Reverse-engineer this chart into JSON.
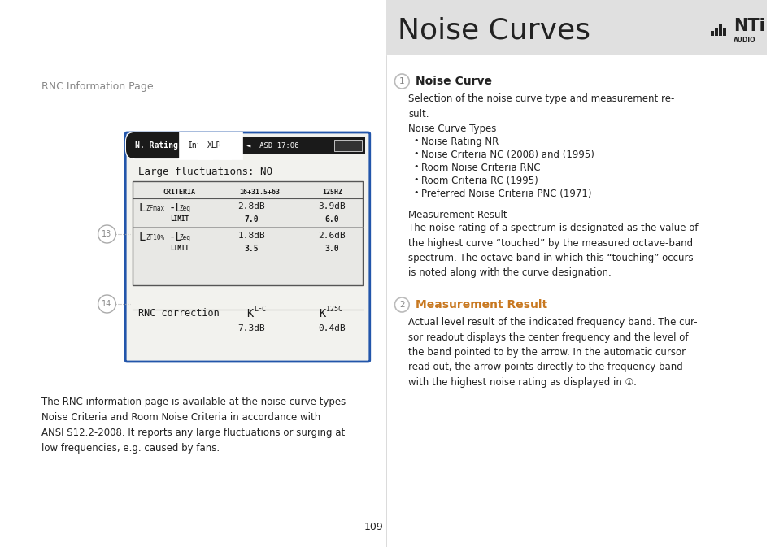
{
  "title": "Noise Curves",
  "header_bg": "#e0e0e0",
  "page_bg": "#ffffff",
  "page_number": "109",
  "left_section_title": "RNC Information Page",
  "screen_border_color": "#2255aa",
  "large_fluctuations_text": "Large fluctuations: NO",
  "table_header_row": [
    "CRITERIA",
    "16+31.5+63",
    "125 HZ"
  ],
  "table_row1_col2": "2.8dB",
  "table_row1_col3": "3.9dB",
  "table_row1_sub_col2": "7.0",
  "table_row1_sub_col3": "6.0",
  "table_row2_col2": "1.8dB",
  "table_row2_col3": "2.6dB",
  "table_row2_sub_col2": "3.5",
  "table_row2_sub_col3": "3.0",
  "rnc_correction_col2_val": "7.3dB",
  "rnc_correction_col3_val": "0.4dB",
  "label_13": "13",
  "label_14": "14",
  "bottom_text": "The RNC information page is available at the noise curve types\nNoise Criteria and Room Noise Criteria in accordance with\nANSI S12.2-2008. It reports any large fluctuations or surging at\nlow frequencies, e.g. caused by fans.",
  "right_title1": "Noise Curve",
  "right_title2": "Measurement Result",
  "noise_curve_intro": "Selection of the noise curve type and measurement re-\nsult.",
  "noise_curve_types_title": "Noise Curve Types",
  "noise_curve_types": [
    "Noise Rating NR",
    "Noise Criteria NC (2008) and (1995)",
    "Room Noise Criteria RNC",
    "Room Criteria RC (1995)",
    "Preferred Noise Criteria PNC (1971)"
  ],
  "measurement_result_title": "Measurement Result",
  "measurement_result_text": "The noise rating of a spectrum is designated as the value of\nthe highest curve “touched” by the measured octave-band\nspectrum. The octave band in which this “touching” occurs\nis noted along with the curve designation.",
  "right_title2_text": "Actual level result of the indicated frequency band. The cur-\nsor readout displays the center frequency and the level of\nthe band pointed to by the arrow. In the automatic cursor\nread out, the arrow points directly to the frequency band\nwith the highest noise rating as displayed in ①.",
  "text_color": "#222222",
  "gray_text": "#888888",
  "orange_text": "#c87820",
  "circle_color": "#aaaaaa"
}
